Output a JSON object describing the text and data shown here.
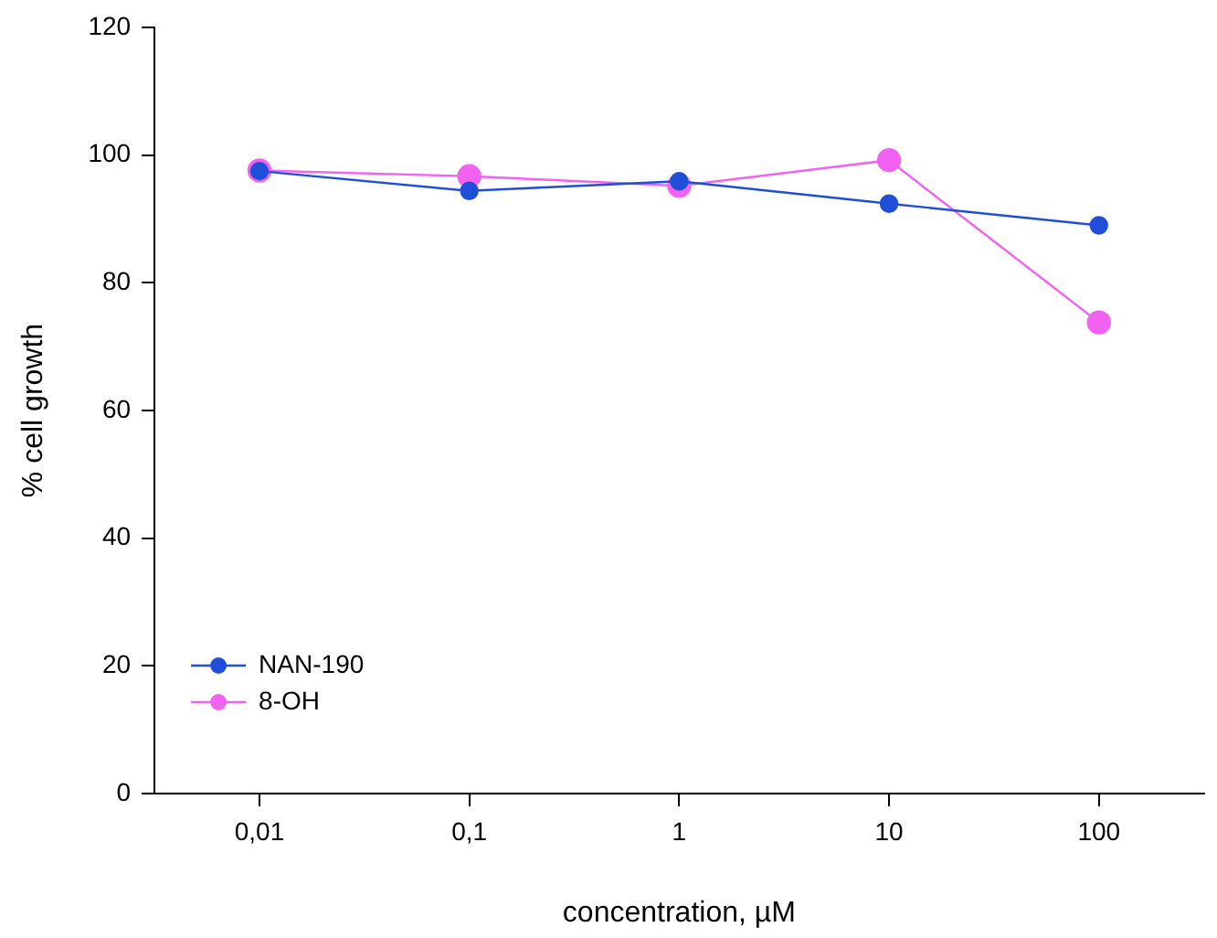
{
  "chart_data": {
    "type": "line",
    "xlabel": "concentration, µM",
    "ylabel": "% cell growth",
    "categories": [
      "0,01",
      "0,1",
      "1",
      "10",
      "100"
    ],
    "series": [
      {
        "name": "NAN-190",
        "color": "#1f4fd8",
        "values": [
          97.5,
          94.4,
          95.9,
          92.4,
          89.0
        ]
      },
      {
        "name": "8-OH",
        "color": "#f262f2",
        "values": [
          97.6,
          96.7,
          95.2,
          99.2,
          73.8
        ]
      }
    ],
    "ylim": [
      0,
      120
    ],
    "yticks": [
      0,
      20,
      40,
      60,
      80,
      100,
      120
    ],
    "grid": false,
    "legend": "bottom left",
    "marker": "circle",
    "line_style": "solid"
  }
}
